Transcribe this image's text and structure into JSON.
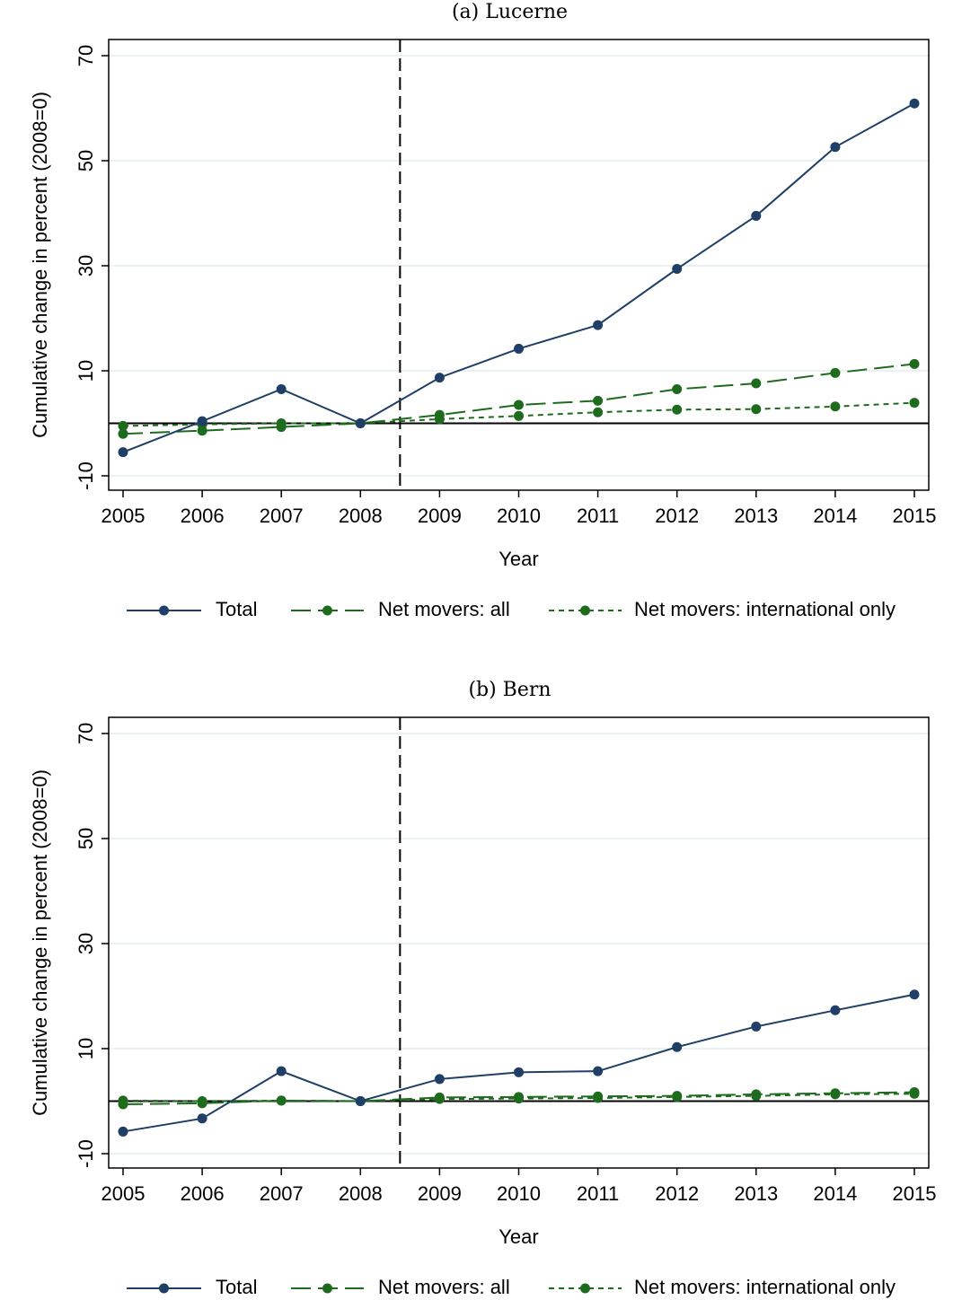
{
  "chart_data": [
    {
      "type": "line",
      "title": "(a) Lucerne",
      "xlabel": "Year",
      "ylabel": "Cumulative change in percent (2008=0)",
      "x": [
        2005,
        2006,
        2007,
        2008,
        2009,
        2010,
        2011,
        2012,
        2013,
        2014,
        2015
      ],
      "xlim": [
        2005,
        2015
      ],
      "ylim": [
        -10,
        70
      ],
      "yticks": [
        -10,
        10,
        30,
        50,
        70
      ],
      "ytick_labels": [
        "-10",
        "10",
        "30",
        "50",
        "70"
      ],
      "xtick_labels": [
        "2005",
        "2006",
        "2007",
        "2008",
        "2009",
        "2010",
        "2011",
        "2012",
        "2013",
        "2014",
        "2015"
      ],
      "reference_hline": 0,
      "reference_vline": 2008.5,
      "grid": true,
      "legend_position": "bottom",
      "series": [
        {
          "name": "Total",
          "color": "#1f3f66",
          "dash": "solid",
          "values": [
            -5.5,
            0.4,
            6.5,
            0,
            8.7,
            14.2,
            18.7,
            29.4,
            39.5,
            52.6,
            60.9
          ]
        },
        {
          "name": "Net movers: all",
          "color": "#1e6b1e",
          "dash": "long",
          "values": [
            -2.0,
            -1.4,
            -0.7,
            0,
            1.6,
            3.5,
            4.3,
            6.5,
            7.6,
            9.6,
            11.3
          ]
        },
        {
          "name": "Net movers: international only",
          "color": "#1e6b1e",
          "dash": "short",
          "values": [
            -0.5,
            -0.2,
            0.0,
            0,
            0.8,
            1.4,
            2.1,
            2.6,
            2.7,
            3.2,
            3.9
          ]
        }
      ]
    },
    {
      "type": "line",
      "title": "(b) Bern",
      "xlabel": "Year",
      "ylabel": "Cumulative change in percent (2008=0)",
      "x": [
        2005,
        2006,
        2007,
        2008,
        2009,
        2010,
        2011,
        2012,
        2013,
        2014,
        2015
      ],
      "xlim": [
        2005,
        2015
      ],
      "ylim": [
        -10,
        70
      ],
      "yticks": [
        -10,
        10,
        30,
        50,
        70
      ],
      "ytick_labels": [
        "-10",
        "10",
        "30",
        "50",
        "70"
      ],
      "xtick_labels": [
        "2005",
        "2006",
        "2007",
        "2008",
        "2009",
        "2010",
        "2011",
        "2012",
        "2013",
        "2014",
        "2015"
      ],
      "reference_hline": 0,
      "reference_vline": 2008.5,
      "grid": true,
      "legend_position": "bottom",
      "series": [
        {
          "name": "Total",
          "color": "#1f3f66",
          "dash": "solid",
          "values": [
            -5.8,
            -3.3,
            5.7,
            0,
            4.2,
            5.5,
            5.7,
            10.3,
            14.2,
            17.3,
            20.3
          ]
        },
        {
          "name": "Net movers: all",
          "color": "#1e6b1e",
          "dash": "long",
          "values": [
            -0.6,
            -0.4,
            0.1,
            0,
            0.7,
            0.8,
            0.9,
            1.0,
            1.3,
            1.5,
            1.7
          ]
        },
        {
          "name": "Net movers: international only",
          "color": "#1e6b1e",
          "dash": "short",
          "values": [
            0.1,
            0.0,
            0.1,
            0,
            0.4,
            0.5,
            0.6,
            0.8,
            1.0,
            1.3,
            1.4
          ]
        }
      ]
    }
  ]
}
